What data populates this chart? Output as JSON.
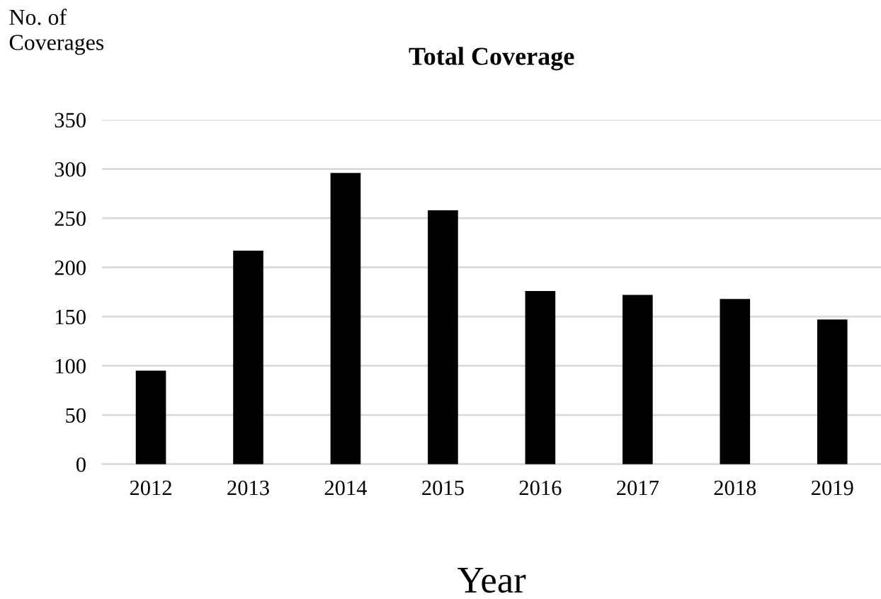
{
  "chart_data": {
    "type": "bar",
    "title": "Total Coverage",
    "ylabel": "No. of\nCoverages",
    "xlabel": "Year",
    "categories": [
      "2012",
      "2013",
      "2014",
      "2015",
      "2016",
      "2017",
      "2018",
      "2019"
    ],
    "values": [
      95,
      217,
      296,
      258,
      176,
      172,
      168,
      147
    ],
    "color": "#000000",
    "ylim": [
      0,
      350
    ],
    "yticks": [
      0,
      50,
      100,
      150,
      200,
      250,
      300,
      350
    ],
    "grid": "y"
  }
}
